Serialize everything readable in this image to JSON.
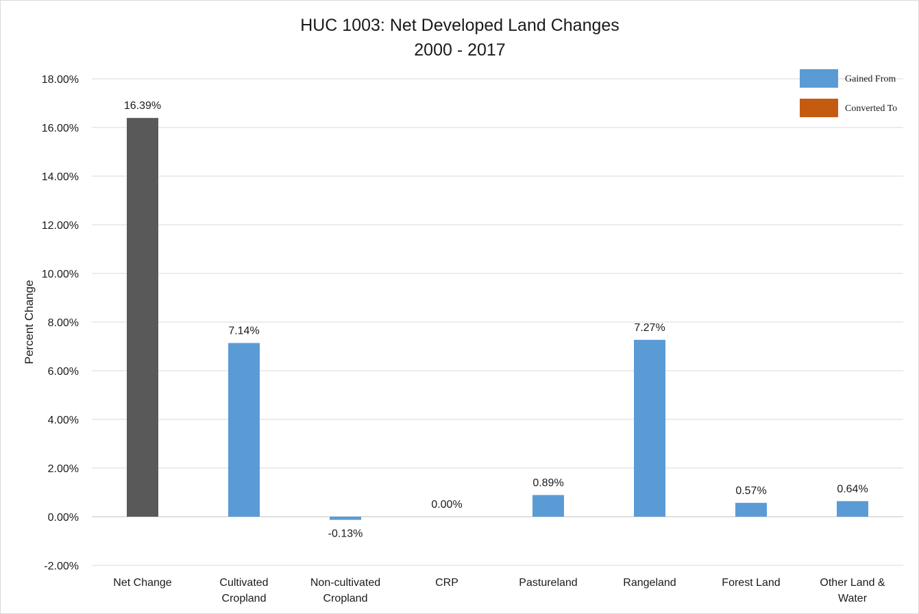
{
  "chart_data": {
    "type": "bar",
    "title": "HUC 1003: Net Developed Land Changes",
    "subtitle": "2000 - 2017",
    "xlabel": "",
    "ylabel": "Percent Change",
    "ylim": [
      -2.0,
      18.0
    ],
    "yticks": [
      -2.0,
      0.0,
      2.0,
      4.0,
      6.0,
      8.0,
      10.0,
      12.0,
      14.0,
      16.0,
      18.0
    ],
    "ytick_labels": [
      "-2.00%",
      "0.00%",
      "2.00%",
      "4.00%",
      "6.00%",
      "8.00%",
      "10.00%",
      "12.00%",
      "14.00%",
      "16.00%",
      "18.00%"
    ],
    "grid": true,
    "legend_position": "top-right",
    "categories": [
      [
        "Net Change"
      ],
      [
        "Cultivated",
        "Cropland"
      ],
      [
        "Non-cultivated",
        "Cropland"
      ],
      [
        "CRP"
      ],
      [
        "Pastureland"
      ],
      [
        "Rangeland"
      ],
      [
        "Forest Land"
      ],
      [
        "Other Land &",
        "Water"
      ]
    ],
    "values": [
      16.39,
      7.14,
      -0.13,
      0.0,
      0.89,
      7.27,
      0.57,
      0.64
    ],
    "data_labels": [
      "16.39%",
      "7.14%",
      "-0.13%",
      "0.00%",
      "0.89%",
      "7.27%",
      "0.57%",
      "0.64%"
    ],
    "bar_colors": [
      "#595959",
      "#5b9bd5",
      "#5b9bd5",
      "#5b9bd5",
      "#5b9bd5",
      "#5b9bd5",
      "#5b9bd5",
      "#5b9bd5"
    ],
    "legend": [
      {
        "name": "Gained From",
        "color": "#5b9bd5"
      },
      {
        "name": "Converted To",
        "color": "#c55a11"
      }
    ]
  }
}
